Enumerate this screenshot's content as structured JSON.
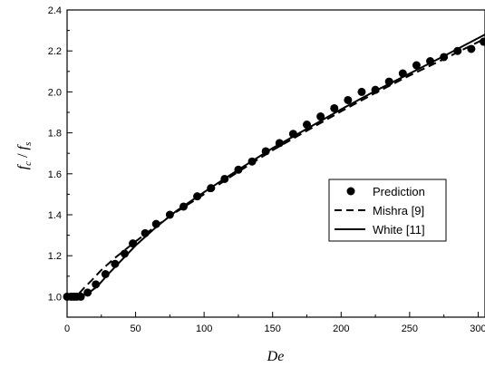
{
  "chart_data": {
    "type": "line",
    "title": "",
    "xlabel": "De",
    "ylabel_parts": {
      "main1": "f",
      "sub1": "c",
      "slash": " / ",
      "main2": "f",
      "sub2": "s"
    },
    "xlim": [
      0,
      305
    ],
    "ylim": [
      0.9,
      2.4
    ],
    "xticks": [
      0,
      50,
      100,
      150,
      200,
      250,
      300
    ],
    "xtick_labels": [
      "0",
      "50",
      "100",
      "150",
      "200",
      "250",
      "300"
    ],
    "yticks": [
      1.0,
      1.2,
      1.4,
      1.6,
      1.8,
      2.0,
      2.2,
      2.4
    ],
    "ytick_labels": [
      "1.0",
      "1.2",
      "1.4",
      "1.6",
      "1.8",
      "2.0",
      "2.2",
      "2.4"
    ],
    "grid": false,
    "legend_position": "center-right",
    "series": [
      {
        "name": "Prediction",
        "style": "markers",
        "color": "#000000",
        "points": [
          [
            0,
            1.0
          ],
          [
            3,
            1.0
          ],
          [
            5,
            1.0
          ],
          [
            7,
            1.0
          ],
          [
            10,
            1.0
          ],
          [
            15,
            1.02
          ],
          [
            21,
            1.06
          ],
          [
            28,
            1.11
          ],
          [
            35,
            1.16
          ],
          [
            42,
            1.21
          ],
          [
            48,
            1.26
          ],
          [
            57,
            1.31
          ],
          [
            65,
            1.355
          ],
          [
            75,
            1.4
          ],
          [
            85,
            1.44
          ],
          [
            95,
            1.49
          ],
          [
            105,
            1.53
          ],
          [
            115,
            1.575
          ],
          [
            125,
            1.62
          ],
          [
            135,
            1.66
          ],
          [
            145,
            1.71
          ],
          [
            155,
            1.75
          ],
          [
            165,
            1.795
          ],
          [
            175,
            1.84
          ],
          [
            185,
            1.88
          ],
          [
            195,
            1.92
          ],
          [
            205,
            1.96
          ],
          [
            215,
            2.0
          ],
          [
            225,
            2.01
          ],
          [
            235,
            2.05
          ],
          [
            245,
            2.09
          ],
          [
            255,
            2.13
          ],
          [
            265,
            2.15
          ],
          [
            275,
            2.17
          ],
          [
            285,
            2.2
          ],
          [
            295,
            2.21
          ],
          [
            304,
            2.245
          ]
        ]
      },
      {
        "name": "Mishra [9]",
        "style": "dashed",
        "color": "#000000",
        "points": [
          [
            0,
            1.0
          ],
          [
            8,
            1.01
          ],
          [
            12,
            1.04
          ],
          [
            18,
            1.08
          ],
          [
            25,
            1.13
          ],
          [
            35,
            1.19
          ],
          [
            50,
            1.27
          ],
          [
            65,
            1.345
          ],
          [
            80,
            1.415
          ],
          [
            100,
            1.5
          ],
          [
            125,
            1.61
          ],
          [
            150,
            1.715
          ],
          [
            175,
            1.81
          ],
          [
            200,
            1.905
          ],
          [
            225,
            1.995
          ],
          [
            250,
            2.08
          ],
          [
            275,
            2.16
          ],
          [
            305,
            2.26
          ]
        ]
      },
      {
        "name": "White [11]",
        "style": "solid",
        "color": "#000000",
        "points": [
          [
            0,
            1.0
          ],
          [
            10,
            1.0
          ],
          [
            16,
            1.02
          ],
          [
            22,
            1.05
          ],
          [
            30,
            1.11
          ],
          [
            40,
            1.18
          ],
          [
            50,
            1.25
          ],
          [
            65,
            1.34
          ],
          [
            80,
            1.42
          ],
          [
            100,
            1.51
          ],
          [
            125,
            1.62
          ],
          [
            150,
            1.725
          ],
          [
            175,
            1.82
          ],
          [
            200,
            1.915
          ],
          [
            225,
            2.005
          ],
          [
            250,
            2.09
          ],
          [
            275,
            2.175
          ],
          [
            305,
            2.28
          ]
        ]
      }
    ]
  }
}
